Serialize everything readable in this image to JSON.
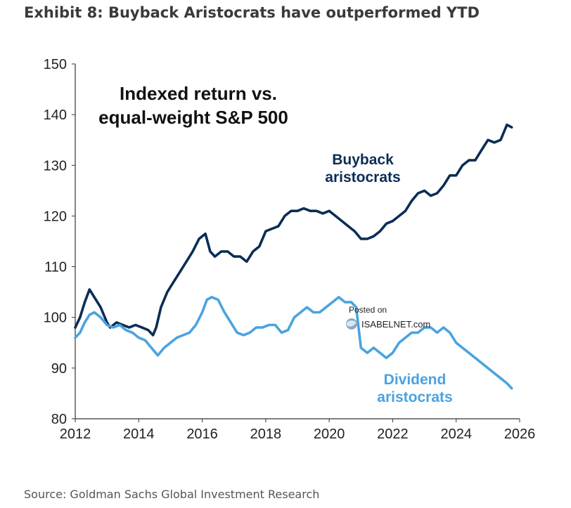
{
  "title": "Exhibit 8: Buyback Aristocrats have outperformed YTD",
  "source": "Source: Goldman Sachs Global Investment Research",
  "watermark": {
    "line1": "Posted on",
    "line2": "ISABELNET.com"
  },
  "chart_data": {
    "type": "line",
    "inset_title_line1": "Indexed return vs.",
    "inset_title_line2": "equal-weight S&P 500",
    "xlim": [
      2012,
      2026
    ],
    "ylim": [
      80,
      150
    ],
    "xticks": [
      2012,
      2014,
      2016,
      2018,
      2020,
      2022,
      2024,
      2026
    ],
    "yticks": [
      80,
      90,
      100,
      110,
      120,
      130,
      140,
      150
    ],
    "grid": false,
    "series": [
      {
        "name": "Buyback aristocrats",
        "label_line1": "Buyback",
        "label_line2": "aristocrats",
        "color": "#0b2d55",
        "x": [
          2012.0,
          2012.15,
          2012.3,
          2012.45,
          2012.6,
          2012.8,
          2013.0,
          2013.1,
          2013.3,
          2013.5,
          2013.7,
          2013.9,
          2014.1,
          2014.3,
          2014.45,
          2014.55,
          2014.7,
          2014.9,
          2015.1,
          2015.3,
          2015.5,
          2015.7,
          2015.9,
          2016.1,
          2016.25,
          2016.4,
          2016.6,
          2016.8,
          2017.0,
          2017.2,
          2017.4,
          2017.6,
          2017.8,
          2018.0,
          2018.2,
          2018.4,
          2018.6,
          2018.8,
          2019.0,
          2019.2,
          2019.4,
          2019.6,
          2019.8,
          2020.0,
          2020.2,
          2020.4,
          2020.6,
          2020.8,
          2021.0,
          2021.2,
          2021.4,
          2021.6,
          2021.8,
          2022.0,
          2022.2,
          2022.4,
          2022.6,
          2022.8,
          2023.0,
          2023.2,
          2023.4,
          2023.6,
          2023.8,
          2024.0,
          2024.2,
          2024.4,
          2024.6,
          2024.8,
          2025.0,
          2025.2,
          2025.4,
          2025.6,
          2025.75
        ],
        "values": [
          98,
          100,
          103,
          105.5,
          104,
          102,
          99,
          98,
          99,
          98.5,
          98,
          98.5,
          98,
          97.5,
          96.5,
          98,
          102,
          105,
          107,
          109,
          111,
          113,
          115.5,
          116.5,
          113,
          112,
          113,
          113,
          112,
          112,
          111,
          113,
          114,
          117,
          117.5,
          118,
          120,
          121,
          121,
          121.5,
          121,
          121,
          120.5,
          121,
          120,
          119,
          118,
          117,
          115.5,
          115.5,
          116,
          117,
          118.5,
          119,
          120,
          121,
          123,
          124.5,
          125,
          124,
          124.5,
          126,
          128,
          128,
          130,
          131,
          131,
          133,
          135,
          134.5,
          135,
          138,
          137.5
        ]
      },
      {
        "name": "Dividend aristocrats",
        "label_line1": "Dividend",
        "label_line2": "aristocrats",
        "color": "#4aa3df",
        "x": [
          2012.0,
          2012.15,
          2012.3,
          2012.45,
          2012.6,
          2012.8,
          2013.0,
          2013.2,
          2013.4,
          2013.6,
          2013.8,
          2014.0,
          2014.2,
          2014.4,
          2014.6,
          2014.8,
          2015.0,
          2015.2,
          2015.4,
          2015.6,
          2015.8,
          2016.0,
          2016.15,
          2016.3,
          2016.5,
          2016.7,
          2016.9,
          2017.1,
          2017.3,
          2017.5,
          2017.7,
          2017.9,
          2018.1,
          2018.3,
          2018.5,
          2018.7,
          2018.9,
          2019.1,
          2019.3,
          2019.5,
          2019.7,
          2019.9,
          2020.1,
          2020.3,
          2020.5,
          2020.7,
          2020.85,
          2021.0,
          2021.2,
          2021.4,
          2021.6,
          2021.8,
          2022.0,
          2022.2,
          2022.4,
          2022.6,
          2022.8,
          2023.0,
          2023.2,
          2023.4,
          2023.6,
          2023.8,
          2024.0,
          2024.2,
          2024.4,
          2024.6,
          2024.8,
          2025.0,
          2025.2,
          2025.4,
          2025.6,
          2025.75
        ],
        "values": [
          96,
          97,
          99,
          100.5,
          101,
          100,
          98.5,
          98,
          98.5,
          97.5,
          97,
          96,
          95.5,
          94,
          92.5,
          94,
          95,
          96,
          96.5,
          97,
          98.5,
          101,
          103.5,
          104,
          103.5,
          101,
          99,
          97,
          96.5,
          97,
          98,
          98,
          98.5,
          98.5,
          97,
          97.5,
          100,
          101,
          102,
          101,
          101,
          102,
          103,
          104,
          103,
          103,
          102,
          94,
          93,
          94,
          93,
          92,
          93,
          95,
          96,
          97,
          97,
          98,
          98,
          97,
          98,
          97,
          95,
          94,
          93,
          92,
          91,
          90,
          89,
          88,
          87,
          86
        ]
      }
    ]
  }
}
